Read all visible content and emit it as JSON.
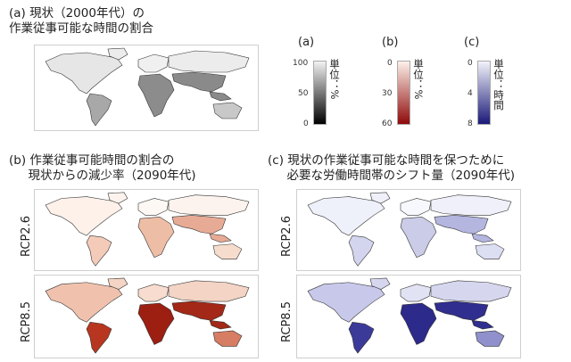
{
  "panel_a": {
    "title": "(a) 現状（2000年代）の\n作業従事可能な時間の割合"
  },
  "panel_b": {
    "title": "(b) 作業従事可能時間の割合の\n     現状からの減少率（2090年代)"
  },
  "panel_c": {
    "title": "(c) 現状の作業従事可能な時間を保つために\n     必要な労働時間帯のシフト量（2090年代)"
  },
  "scenarios": [
    "RCP2.6",
    "RCP8.5"
  ],
  "colorbars": [
    {
      "label": "(a)",
      "ticks": [
        "100",
        "50",
        "0"
      ],
      "unit": "単位：%",
      "colors": [
        "#f2f2f2",
        "#000000"
      ],
      "range": [
        100,
        0
      ]
    },
    {
      "label": "(b)",
      "ticks": [
        "0",
        "30",
        "60"
      ],
      "unit": "単位：%",
      "colors": [
        "#fdf1ea",
        "#8f0a0a"
      ],
      "range": [
        0,
        60
      ]
    },
    {
      "label": "(c)",
      "ticks": [
        "0",
        "4",
        "8"
      ],
      "unit": "単位：時間",
      "colors": [
        "#f2f3fb",
        "#1a1978"
      ],
      "range": [
        0,
        8
      ]
    }
  ],
  "map_fills": {
    "a": {
      "americas_north": "#e6e6e6",
      "americas_south": "#a8a8a8",
      "europe": "#f0f0f0",
      "africa": "#8c8c8c",
      "asia_north": "#ececec",
      "asia_south": "#8a8a8a",
      "oceania": "#c8c8c8"
    },
    "b26": {
      "americas_north": "#fdf1ea",
      "americas_south": "#f3cbb8",
      "europe": "#fef8f4",
      "africa": "#eebda6",
      "asia_north": "#fdf3ee",
      "asia_south": "#e7ab95",
      "oceania": "#f6dccd"
    },
    "b85": {
      "americas_north": "#f0c2ad",
      "americas_south": "#b8361f",
      "europe": "#f7dccf",
      "africa": "#9c1f12",
      "asia_north": "#f3d4c5",
      "asia_south": "#a32817",
      "oceania": "#d77d63"
    },
    "c26": {
      "americas_north": "#eef0fa",
      "americas_south": "#d3d5ef",
      "europe": "#f7f8fd",
      "africa": "#cacce8",
      "asia_north": "#eff0fa",
      "asia_south": "#b4b6e0",
      "oceania": "#dcdef2"
    },
    "c85": {
      "americas_north": "#c8c9ea",
      "americas_south": "#3c3a99",
      "europe": "#e1e2f4",
      "africa": "#2c2a8a",
      "asia_north": "#d6d7ef",
      "asia_south": "#302e8f",
      "oceania": "#8f90cc"
    }
  }
}
